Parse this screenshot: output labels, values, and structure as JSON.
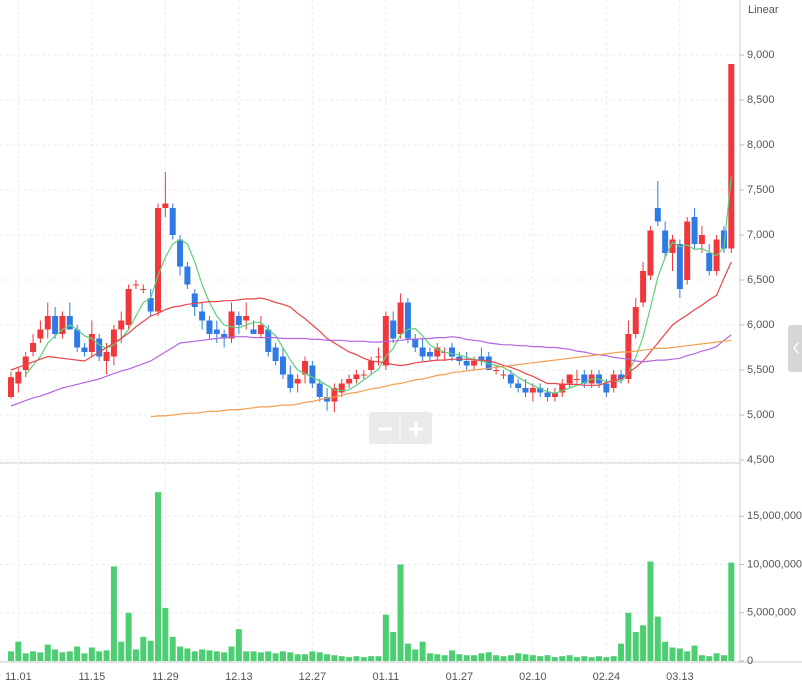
{
  "chart_data": [
    {
      "type": "candlestick",
      "scale_label": "Linear",
      "log_scale": false,
      "grid": true,
      "up_color": "#f0383c",
      "down_color": "#2f7ae5",
      "ylim": [
        4500,
        9500
      ],
      "yticks": [
        {
          "value": 4500,
          "label": "4,500"
        },
        {
          "value": 5000,
          "label": "5,000"
        },
        {
          "value": 5500,
          "label": "5,500"
        },
        {
          "value": 6000,
          "label": "6,000"
        },
        {
          "value": 6500,
          "label": "6,500"
        },
        {
          "value": 7000,
          "label": "7,000"
        },
        {
          "value": 7500,
          "label": "7,500"
        },
        {
          "value": 8000,
          "label": "8,000"
        },
        {
          "value": 8500,
          "label": "8,500"
        },
        {
          "value": 9000,
          "label": "9,000"
        }
      ],
      "open": [
        5200,
        5350,
        5500,
        5700,
        5850,
        5950,
        6100,
        5900,
        6100,
        5950,
        5750,
        5700,
        5850,
        5600,
        5650,
        5950,
        6000,
        6450,
        6400,
        6300,
        6150,
        7300,
        7300,
        6950,
        6650,
        6350,
        6150,
        6050,
        5950,
        5900,
        5850,
        6100,
        6050,
        5950,
        5900,
        5950,
        5750,
        5650,
        5450,
        5350,
        5450,
        5550,
        5350,
        5200,
        5150,
        5250,
        5350,
        5400,
        5450,
        5500,
        5650,
        5550,
        6050,
        5900,
        6250,
        5850,
        5750,
        5700,
        5650,
        5700,
        5750,
        5650,
        5600,
        5550,
        5650,
        5650,
        5500,
        5450,
        5450,
        5350,
        5300,
        5250,
        5300,
        5250,
        5200,
        5250,
        5350,
        5400,
        5450,
        5350,
        5450,
        5350,
        5300,
        5450,
        5400,
        5900,
        6250,
        6550,
        7300,
        7050,
        6800,
        6900,
        6500,
        7200,
        6900,
        6800,
        6600,
        7050,
        6850
      ],
      "high": [
        5480,
        5520,
        5700,
        5900,
        6050,
        6250,
        6200,
        6150,
        6250,
        6000,
        5800,
        6050,
        5900,
        5800,
        6000,
        6150,
        6450,
        6500,
        6450,
        6400,
        7350,
        7700,
        7350,
        7000,
        6700,
        6400,
        6250,
        6100,
        6050,
        5950,
        6250,
        6150,
        6250,
        6050,
        6100,
        6000,
        5800,
        5750,
        5550,
        5450,
        5650,
        5600,
        5400,
        5300,
        5350,
        5400,
        5450,
        5500,
        5500,
        5650,
        5750,
        6150,
        6150,
        6350,
        6300,
        5900,
        5850,
        5750,
        5800,
        5750,
        5800,
        5700,
        5700,
        5650,
        5750,
        5700,
        5550,
        5500,
        5500,
        5400,
        5400,
        5350,
        5350,
        5300,
        5300,
        5400,
        5450,
        5500,
        5500,
        5500,
        5500,
        5400,
        5500,
        5500,
        6050,
        6300,
        6700,
        7100,
        7600,
        7150,
        7000,
        6950,
        7200,
        7300,
        7100,
        6900,
        7000,
        7100,
        8900
      ],
      "low": [
        5180,
        5250,
        5420,
        5650,
        5800,
        5850,
        5850,
        5850,
        5950,
        5700,
        5650,
        5650,
        5600,
        5450,
        5550,
        5800,
        5950,
        6400,
        6350,
        6100,
        6100,
        7200,
        6950,
        6550,
        6400,
        6100,
        5950,
        5850,
        5800,
        5750,
        5800,
        5900,
        5950,
        5900,
        5850,
        5650,
        5550,
        5400,
        5250,
        5250,
        5350,
        5300,
        5150,
        5050,
        5030,
        5200,
        5300,
        5350,
        5400,
        5450,
        5550,
        5500,
        5800,
        5850,
        5800,
        5700,
        5600,
        5600,
        5600,
        5600,
        5600,
        5550,
        5500,
        5500,
        5550,
        5500,
        5450,
        5400,
        5300,
        5250,
        5200,
        5150,
        5200,
        5150,
        5150,
        5200,
        5300,
        5350,
        5300,
        5300,
        5300,
        5200,
        5250,
        5350,
        5350,
        5850,
        6200,
        6500,
        7100,
        6750,
        6600,
        6300,
        6450,
        6850,
        6800,
        6550,
        6550,
        6800,
        6800
      ],
      "close": [
        5420,
        5480,
        5650,
        5800,
        5950,
        6100,
        5900,
        6100,
        5950,
        5750,
        5700,
        5900,
        5650,
        5700,
        5950,
        6050,
        6400,
        6450,
        6400,
        6150,
        7300,
        7350,
        7000,
        6650,
        6450,
        6200,
        6050,
        5900,
        5900,
        5850,
        6150,
        6000,
        6100,
        5900,
        6000,
        5700,
        5600,
        5450,
        5300,
        5400,
        5600,
        5350,
        5200,
        5150,
        5300,
        5350,
        5400,
        5450,
        5450,
        5600,
        5650,
        6100,
        5850,
        6250,
        5850,
        5750,
        5650,
        5650,
        5750,
        5700,
        5650,
        5600,
        5550,
        5600,
        5600,
        5500,
        5500,
        5450,
        5350,
        5300,
        5250,
        5300,
        5250,
        5200,
        5250,
        5350,
        5450,
        5400,
        5350,
        5450,
        5350,
        5250,
        5450,
        5400,
        5900,
        6200,
        6600,
        7050,
        7150,
        6800,
        6950,
        6400,
        7150,
        6900,
        7000,
        6600,
        6950,
        6850,
        8900
      ],
      "series": [
        {
          "color": "#5fcf7e",
          "values": [
            null,
            null,
            5450,
            5550,
            5650,
            5800,
            5880,
            5950,
            6000,
            5950,
            5880,
            5850,
            5780,
            5740,
            5780,
            5850,
            5950,
            6100,
            6250,
            6300,
            6550,
            6750,
            6900,
            6950,
            6900,
            6700,
            6450,
            6250,
            6100,
            6000,
            5980,
            5970,
            6000,
            6030,
            6030,
            5950,
            5880,
            5750,
            5610,
            5500,
            5460,
            5420,
            5380,
            5330,
            5280,
            5270,
            5280,
            5330,
            5390,
            5450,
            5510,
            5650,
            5740,
            5890,
            5950,
            5960,
            5880,
            5780,
            5730,
            5700,
            5680,
            5670,
            5640,
            5620,
            5600,
            5570,
            5550,
            5530,
            5480,
            5420,
            5370,
            5330,
            5290,
            5260,
            5240,
            5270,
            5300,
            5330,
            5360,
            5400,
            5400,
            5370,
            5380,
            5370,
            5470,
            5640,
            5870,
            6190,
            6530,
            6750,
            6920,
            6870,
            6890,
            6840,
            6850,
            6810,
            6770,
            6860,
            7650
          ]
        },
        {
          "color": "#e8454a",
          "values": [
            5500,
            5530,
            5560,
            5590,
            5620,
            5650,
            5640,
            5630,
            5620,
            5610,
            5600,
            5650,
            5700,
            5750,
            5800,
            5850,
            5910,
            5980,
            6040,
            6100,
            6130,
            6170,
            6200,
            6210,
            6230,
            6240,
            6250,
            6260,
            6260,
            6270,
            6270,
            6280,
            6290,
            6290,
            6300,
            6280,
            6250,
            6230,
            6200,
            6130,
            6070,
            6000,
            5930,
            5850,
            5800,
            5750,
            5700,
            5670,
            5630,
            5600,
            5590,
            5580,
            5560,
            5550,
            5560,
            5580,
            5590,
            5600,
            5610,
            5610,
            5620,
            5620,
            5620,
            5610,
            5610,
            5600,
            5580,
            5550,
            5530,
            5500,
            5460,
            5430,
            5390,
            5350,
            5350,
            5340,
            5340,
            5340,
            5330,
            5330,
            5330,
            5360,
            5380,
            5400,
            5470,
            5530,
            5600,
            5700,
            5800,
            5900,
            6000,
            6060,
            6110,
            6170,
            6220,
            6280,
            6330,
            6520,
            6700
          ]
        },
        {
          "color": "#b565e0",
          "values": [
            5100,
            5130,
            5160,
            5190,
            5210,
            5240,
            5270,
            5300,
            5320,
            5340,
            5360,
            5380,
            5400,
            5430,
            5460,
            5490,
            5510,
            5540,
            5570,
            5600,
            5650,
            5700,
            5750,
            5800,
            5810,
            5820,
            5830,
            5840,
            5850,
            5860,
            5870,
            5870,
            5870,
            5860,
            5860,
            5860,
            5860,
            5850,
            5850,
            5850,
            5850,
            5840,
            5840,
            5830,
            5830,
            5830,
            5820,
            5820,
            5820,
            5810,
            5810,
            5820,
            5820,
            5830,
            5840,
            5840,
            5850,
            5850,
            5860,
            5860,
            5870,
            5860,
            5840,
            5830,
            5820,
            5800,
            5790,
            5780,
            5780,
            5770,
            5770,
            5760,
            5760,
            5750,
            5750,
            5740,
            5730,
            5710,
            5700,
            5680,
            5670,
            5660,
            5640,
            5630,
            5620,
            5600,
            5590,
            5600,
            5610,
            5610,
            5620,
            5630,
            5660,
            5680,
            5710,
            5730,
            5760,
            5830,
            5890
          ]
        },
        {
          "color": "#f0a050",
          "values": [
            null,
            null,
            null,
            null,
            null,
            null,
            null,
            null,
            null,
            null,
            null,
            null,
            null,
            null,
            null,
            null,
            null,
            null,
            null,
            4980,
            4990,
            4990,
            5000,
            5010,
            5020,
            5020,
            5030,
            5040,
            5040,
            5050,
            5060,
            5060,
            5070,
            5080,
            5090,
            5090,
            5100,
            5110,
            5110,
            5120,
            5140,
            5150,
            5170,
            5190,
            5200,
            5220,
            5240,
            5250,
            5270,
            5290,
            5300,
            5320,
            5340,
            5350,
            5370,
            5390,
            5400,
            5420,
            5440,
            5450,
            5470,
            5480,
            5490,
            5500,
            5510,
            5520,
            5530,
            5540,
            5550,
            5560,
            5570,
            5580,
            5590,
            5600,
            5610,
            5620,
            5630,
            5640,
            5650,
            5660,
            5670,
            5680,
            5690,
            5700,
            5700,
            5710,
            5720,
            5730,
            5740,
            5740,
            5750,
            5760,
            5770,
            5780,
            5790,
            5800,
            5810,
            5820,
            5830
          ]
        }
      ]
    },
    {
      "type": "bar",
      "color": "#4cce72",
      "grid": true,
      "categories": [
        null,
        "11.01",
        null,
        null,
        null,
        null,
        null,
        null,
        null,
        null,
        null,
        "11.15",
        null,
        null,
        null,
        null,
        null,
        null,
        null,
        null,
        null,
        "11.29",
        null,
        null,
        null,
        null,
        null,
        null,
        null,
        null,
        null,
        "12.13",
        null,
        null,
        null,
        null,
        null,
        null,
        null,
        null,
        null,
        "12.27",
        null,
        null,
        null,
        null,
        null,
        null,
        null,
        null,
        null,
        "01.11",
        null,
        null,
        null,
        null,
        null,
        null,
        null,
        null,
        null,
        "01.27",
        null,
        null,
        null,
        null,
        null,
        null,
        null,
        null,
        null,
        "02.10",
        null,
        null,
        null,
        null,
        null,
        null,
        null,
        null,
        null,
        "02.24",
        null,
        null,
        null,
        null,
        null,
        null,
        null,
        null,
        null,
        "03.13",
        null,
        null,
        null,
        null,
        null,
        null,
        null
      ],
      "values": [
        1000000,
        2000000,
        800000,
        1000000,
        900000,
        1700000,
        1200000,
        900000,
        1000000,
        1500000,
        800000,
        1400000,
        1000000,
        1100000,
        9800000,
        2000000,
        5000000,
        1200000,
        2500000,
        2100000,
        17500000,
        5500000,
        2500000,
        1500000,
        1300000,
        1000000,
        1200000,
        1100000,
        1000000,
        900000,
        1500000,
        3300000,
        1000000,
        1000000,
        900000,
        1000000,
        800000,
        1000000,
        900000,
        700000,
        700000,
        1000000,
        900000,
        700000,
        600000,
        500000,
        400000,
        500000,
        400000,
        500000,
        500000,
        4800000,
        3000000,
        10000000,
        1800000,
        1200000,
        2000000,
        800000,
        700000,
        600000,
        1100000,
        700000,
        600000,
        600000,
        800000,
        900000,
        600000,
        500000,
        600000,
        800000,
        700000,
        600000,
        500000,
        600000,
        400000,
        500000,
        600000,
        400000,
        500000,
        400000,
        500000,
        400000,
        500000,
        1800000,
        5000000,
        3000000,
        3700000,
        10300000,
        4600000,
        2000000,
        1400000,
        1300000,
        1000000,
        1600000,
        600000,
        500000,
        800000,
        600000,
        10200000
      ],
      "ylim": [
        0,
        20000000
      ],
      "yticks": [
        0,
        {
          "value": 5000000,
          "label": "5,000,000"
        },
        {
          "value": 10000000,
          "label": "10,000,000"
        },
        {
          "value": 15000000,
          "label": "15,000,000"
        }
      ]
    }
  ]
}
